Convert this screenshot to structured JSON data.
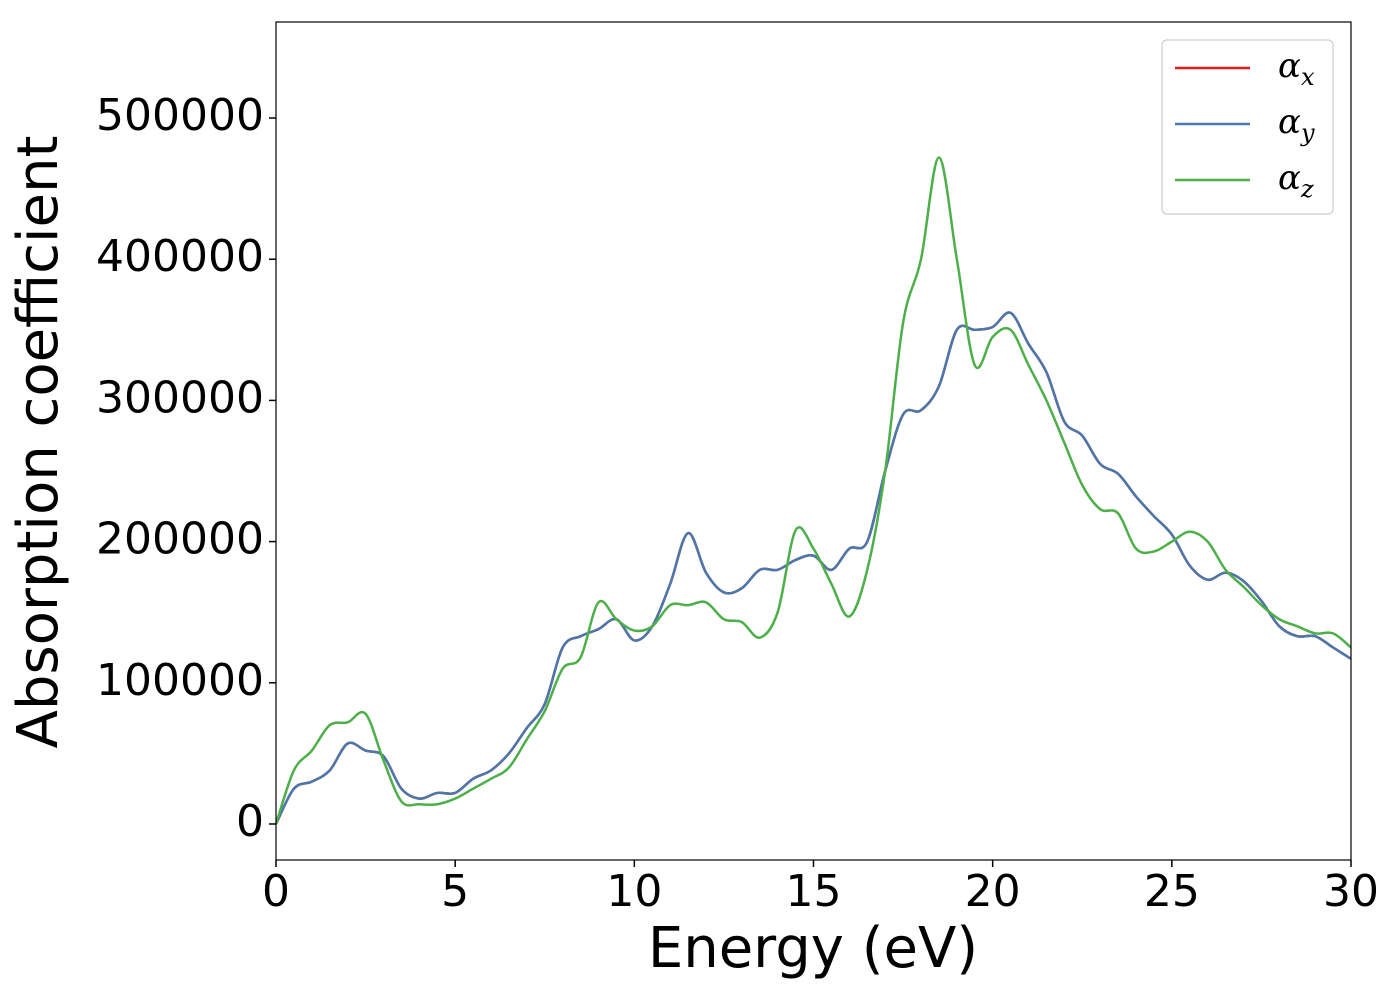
{
  "chart_data": {
    "type": "line",
    "xlabel": "Energy (eV)",
    "ylabel": "Absorption coefficient",
    "x": [
      0,
      0.5,
      1,
      1.5,
      2,
      2.5,
      3,
      3.5,
      4,
      4.5,
      5,
      5.5,
      6,
      6.5,
      7,
      7.5,
      8,
      8.5,
      9,
      9.5,
      10,
      10.5,
      11,
      11.5,
      12,
      12.5,
      13,
      13.5,
      14,
      14.5,
      15,
      15.5,
      16,
      16.5,
      17,
      17.5,
      18,
      18.5,
      19,
      19.5,
      20,
      20.5,
      21,
      21.5,
      22,
      22.5,
      23,
      23.5,
      24,
      24.5,
      25,
      25.5,
      26,
      26.5,
      27,
      27.5,
      28,
      28.5,
      29,
      29.5,
      30
    ],
    "series": [
      {
        "name": "αx",
        "color": "#e41a1c",
        "values": [
          0,
          25000,
          30000,
          38000,
          57000,
          52000,
          48000,
          25000,
          18000,
          22000,
          22000,
          32000,
          38000,
          50000,
          68000,
          85000,
          125000,
          133000,
          138000,
          145000,
          130000,
          140000,
          170000,
          206000,
          178000,
          164000,
          167000,
          180000,
          180000,
          187000,
          190000,
          180000,
          195000,
          200000,
          250000,
          290000,
          293000,
          310000,
          350000,
          350000,
          352000,
          362000,
          340000,
          320000,
          285000,
          275000,
          255000,
          248000,
          232000,
          218000,
          205000,
          183000,
          173000,
          178000,
          172000,
          158000,
          140000,
          133000,
          133000,
          125000,
          117000
        ]
      },
      {
        "name": "αy",
        "color": "#4a78aa",
        "values": [
          0,
          25000,
          30000,
          38000,
          57000,
          52000,
          48000,
          25000,
          18000,
          22000,
          22000,
          32000,
          38000,
          50000,
          68000,
          85000,
          125000,
          133000,
          138000,
          145000,
          130000,
          140000,
          170000,
          206000,
          178000,
          164000,
          167000,
          180000,
          180000,
          187000,
          190000,
          180000,
          195000,
          200000,
          250000,
          290000,
          293000,
          310000,
          350000,
          350000,
          352000,
          362000,
          340000,
          320000,
          285000,
          275000,
          255000,
          248000,
          232000,
          218000,
          205000,
          183000,
          173000,
          178000,
          172000,
          158000,
          140000,
          133000,
          133000,
          125000,
          117000
        ]
      },
      {
        "name": "αz",
        "color": "#4daf4a",
        "values": [
          0,
          38000,
          52000,
          70000,
          72000,
          78000,
          45000,
          16000,
          14000,
          14000,
          18000,
          25000,
          32000,
          40000,
          60000,
          80000,
          110000,
          118000,
          157000,
          145000,
          137000,
          140000,
          155000,
          155000,
          157000,
          145000,
          143000,
          132000,
          150000,
          208000,
          195000,
          170000,
          147000,
          180000,
          250000,
          355000,
          400000,
          472000,
          400000,
          325000,
          345000,
          350000,
          325000,
          300000,
          270000,
          240000,
          223000,
          220000,
          195000,
          193000,
          200000,
          207000,
          200000,
          180000,
          168000,
          155000,
          145000,
          140000,
          135000,
          135000,
          125000
        ]
      }
    ],
    "xlim": [
      0,
      30
    ],
    "xticks": [
      0,
      5,
      10,
      15,
      20,
      25,
      30
    ],
    "ylim": [
      -25500,
      568000
    ],
    "yticks": [
      0,
      100000,
      200000,
      300000,
      400000,
      500000
    ],
    "legend": "upper right"
  }
}
